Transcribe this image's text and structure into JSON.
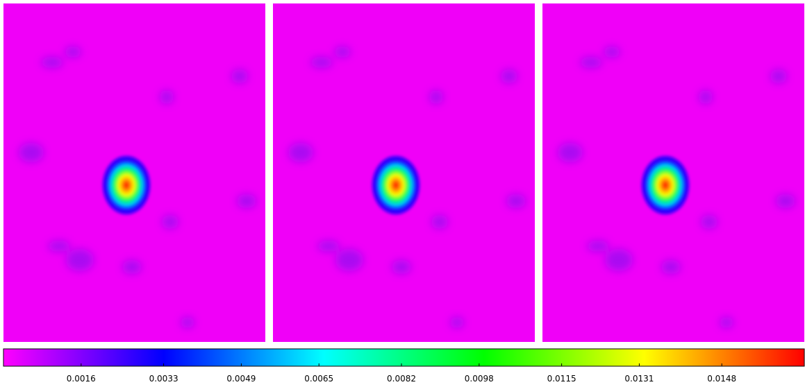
{
  "chart_data": {
    "type": "heatmap",
    "colormap": [
      "#ff00ff",
      "#0000ff",
      "#00ffff",
      "#00ff00",
      "#ffff00",
      "#ff0000"
    ],
    "clim": [
      0,
      0.0165
    ],
    "cticks": [
      0.0016,
      0.0033,
      0.0049,
      0.0065,
      0.0082,
      0.0098,
      0.0115,
      0.0131,
      0.0148
    ]
  }
}
